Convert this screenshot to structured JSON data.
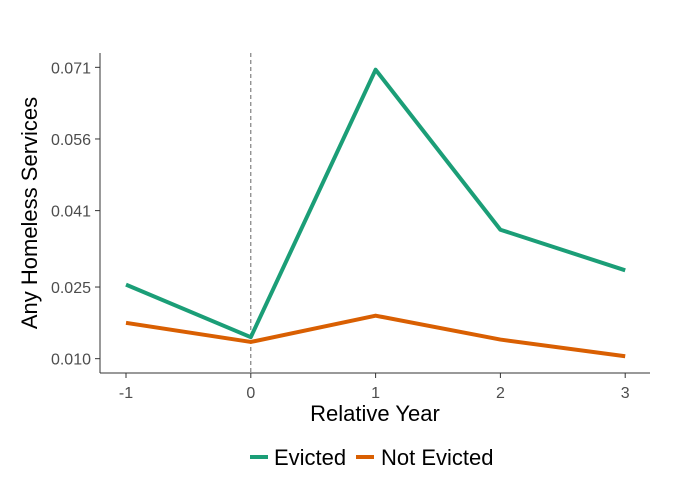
{
  "chart_data": {
    "type": "line",
    "xlabel": "Relative Year",
    "ylabel": "Any Homeless Services",
    "x": [
      -1,
      0,
      1,
      2,
      3
    ],
    "x_ticks": [
      "-1",
      "0",
      "1",
      "2",
      "3"
    ],
    "y_ticks": [
      "0.010",
      "0.025",
      "0.041",
      "0.056",
      "0.071"
    ],
    "y_tick_values": [
      0.01,
      0.025,
      0.041,
      0.056,
      0.071
    ],
    "ylim": [
      0.007,
      0.074
    ],
    "xlim": [
      -1.2,
      3.2
    ],
    "vline_x": 0,
    "grid": false,
    "legend_position": "bottom",
    "series": [
      {
        "name": "Evicted",
        "color": "#1b9e77",
        "values": [
          0.0255,
          0.0145,
          0.0705,
          0.037,
          0.0285
        ]
      },
      {
        "name": "Not Evicted",
        "color": "#d95f02",
        "values": [
          0.0175,
          0.0135,
          0.019,
          0.014,
          0.0105
        ]
      }
    ]
  }
}
